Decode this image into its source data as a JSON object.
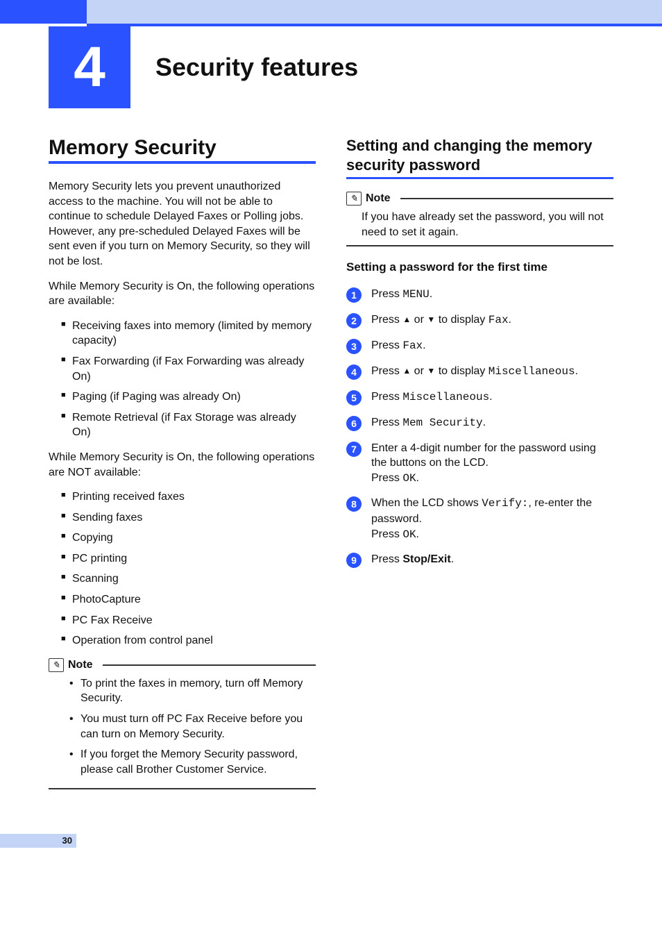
{
  "colors": {
    "brand_blue": "#2a53ff",
    "header_light": "#c4d4f7",
    "text": "#111111",
    "page_bg": "#ffffff"
  },
  "chapter": {
    "number": "4",
    "title": "Security features"
  },
  "page_number": "30",
  "left": {
    "heading": "Memory Security",
    "para1": "Memory Security lets you prevent unauthorized access to the machine. You will not be able to continue to schedule Delayed Faxes or Polling jobs. However, any pre-scheduled Delayed Faxes will be sent even if you turn on Memory Security, so they will not be lost.",
    "para2": "While Memory Security is On, the following operations are available:",
    "available": [
      "Receiving faxes into memory (limited by memory capacity)",
      "Fax Forwarding (if Fax Forwarding was already On)",
      "Paging (if Paging was already On)",
      "Remote Retrieval (if Fax Storage was already On)"
    ],
    "para3": "While Memory Security is On, the following operations are NOT available:",
    "not_available": [
      "Printing received faxes",
      "Sending faxes",
      "Copying",
      "PC printing",
      "Scanning",
      "PhotoCapture",
      "PC Fax Receive",
      "Operation from control panel"
    ],
    "note_label": "Note",
    "note_items": [
      "To print the faxes in memory, turn off Memory Security.",
      "You must turn off PC Fax Receive before you can turn on Memory Security.",
      "If you forget the Memory Security password, please call Brother Customer Service."
    ]
  },
  "right": {
    "heading": "Setting and changing the memory security password",
    "note_label": "Note",
    "note_text": "If you have already set the password, you will not need to set it again.",
    "subheading": "Setting a password for the first time",
    "steps": {
      "s1": {
        "pre": "Press ",
        "mono": "MENU",
        "post": "."
      },
      "s2": {
        "pre": "Press ",
        "up": "▲",
        "mid": " or ",
        "down": "▼",
        "mid2": " to display ",
        "mono": "Fax",
        "post": "."
      },
      "s3": {
        "pre": "Press ",
        "mono": "Fax",
        "post": "."
      },
      "s4": {
        "pre": "Press ",
        "up": "▲",
        "mid": " or ",
        "down": "▼",
        "mid2": " to display ",
        "mono": "Miscellaneous",
        "post": "."
      },
      "s5": {
        "pre": "Press ",
        "mono": "Miscellaneous",
        "post": "."
      },
      "s6": {
        "pre": "Press ",
        "mono": "Mem Security",
        "post": "."
      },
      "s7": {
        "line1": "Enter a 4-digit number for the password using the buttons on the LCD.",
        "line2_pre": "Press ",
        "line2_mono": "OK",
        "line2_post": "."
      },
      "s8": {
        "line1_pre": "When the LCD shows ",
        "line1_mono": "Verify:",
        "line1_post": ", re-enter the password.",
        "line2_pre": "Press ",
        "line2_mono": "OK",
        "line2_post": "."
      },
      "s9": {
        "pre": "Press ",
        "bold": "Stop/Exit",
        "post": "."
      }
    },
    "step_numbers": [
      "1",
      "2",
      "3",
      "4",
      "5",
      "6",
      "7",
      "8",
      "9"
    ]
  }
}
